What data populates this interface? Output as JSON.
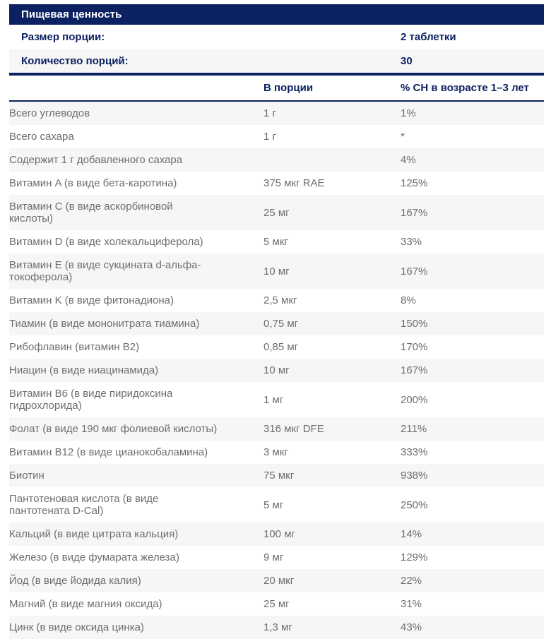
{
  "header": {
    "title": "Пищевая ценность"
  },
  "summary": [
    {
      "label": "Размер порции:",
      "value": "2 таблетки"
    },
    {
      "label": "Количество порций:",
      "value": "30"
    }
  ],
  "columns": {
    "amount": "В порции",
    "dv": "% СН в возрасте 1–3 лет"
  },
  "rows": [
    {
      "name": "Всего углеводов",
      "amount": "1 г",
      "dv": "1%"
    },
    {
      "name": "Всего сахара",
      "amount": "1 г",
      "dv": "*"
    },
    {
      "name": "Содержит 1 г добавленного сахара",
      "amount": "",
      "dv": "4%"
    },
    {
      "name": "Витамин A (в виде бета-каротина)",
      "amount": "375 мкг RAE",
      "dv": "125%"
    },
    {
      "name": "Витамин C (в виде аскорбиновой\nкислоты)",
      "amount": "25 мг",
      "dv": "167%"
    },
    {
      "name": "Витамин D (в виде холекальциферола)",
      "amount": "5 мкг",
      "dv": "33%"
    },
    {
      "name": "Витамин E (в виде сукцината d-альфа-\nтокоферола)",
      "amount": "10 мг",
      "dv": "167%"
    },
    {
      "name": "Витамин K (в виде фитонадиона)",
      "amount": "2,5 мкг",
      "dv": "8%"
    },
    {
      "name": "Тиамин (в виде мононитрата тиамина)",
      "amount": "0,75 мг",
      "dv": "150%"
    },
    {
      "name": "Рибофлавин (витамин B2)",
      "amount": "0,85 мг",
      "dv": "170%"
    },
    {
      "name": "Ниацин (в виде ниацинамида)",
      "amount": "10 мг",
      "dv": "167%"
    },
    {
      "name": "Витамин B6 (в виде пиридоксина\nгидрохлорида)",
      "amount": "1 мг",
      "dv": "200%"
    },
    {
      "name": "Фолат (в виде 190 мкг фолиевой кислоты)",
      "amount": "316 мкг DFE",
      "dv": "211%"
    },
    {
      "name": "Витамин B12 (в виде цианокобаламина)",
      "amount": "3 мкг",
      "dv": "333%"
    },
    {
      "name": "Биотин",
      "amount": "75 мкг",
      "dv": "938%"
    },
    {
      "name": "Пантотеновая кислота (в виде\nпантотената D-Cal)",
      "amount": "5 мг",
      "dv": "250%"
    },
    {
      "name": "Кальций (в виде цитрата кальция)",
      "amount": "100 мг",
      "dv": "14%"
    },
    {
      "name": "Железо (в виде фумарата железа)",
      "amount": "9 мг",
      "dv": "129%"
    },
    {
      "name": "Йод (в виде йодида калия)",
      "amount": "20 мкг",
      "dv": "22%"
    },
    {
      "name": "Магний (в виде магния оксида)",
      "amount": "25 мг",
      "dv": "31%"
    },
    {
      "name": "Цинк (в виде оксида цинка)",
      "amount": "1,3 мг",
      "dv": "43%"
    }
  ],
  "colors": {
    "navy": "#0c2161",
    "row_alt": "#f6f6f6",
    "text_gray": "#6e6e6e",
    "title_text": "#ffffff"
  }
}
